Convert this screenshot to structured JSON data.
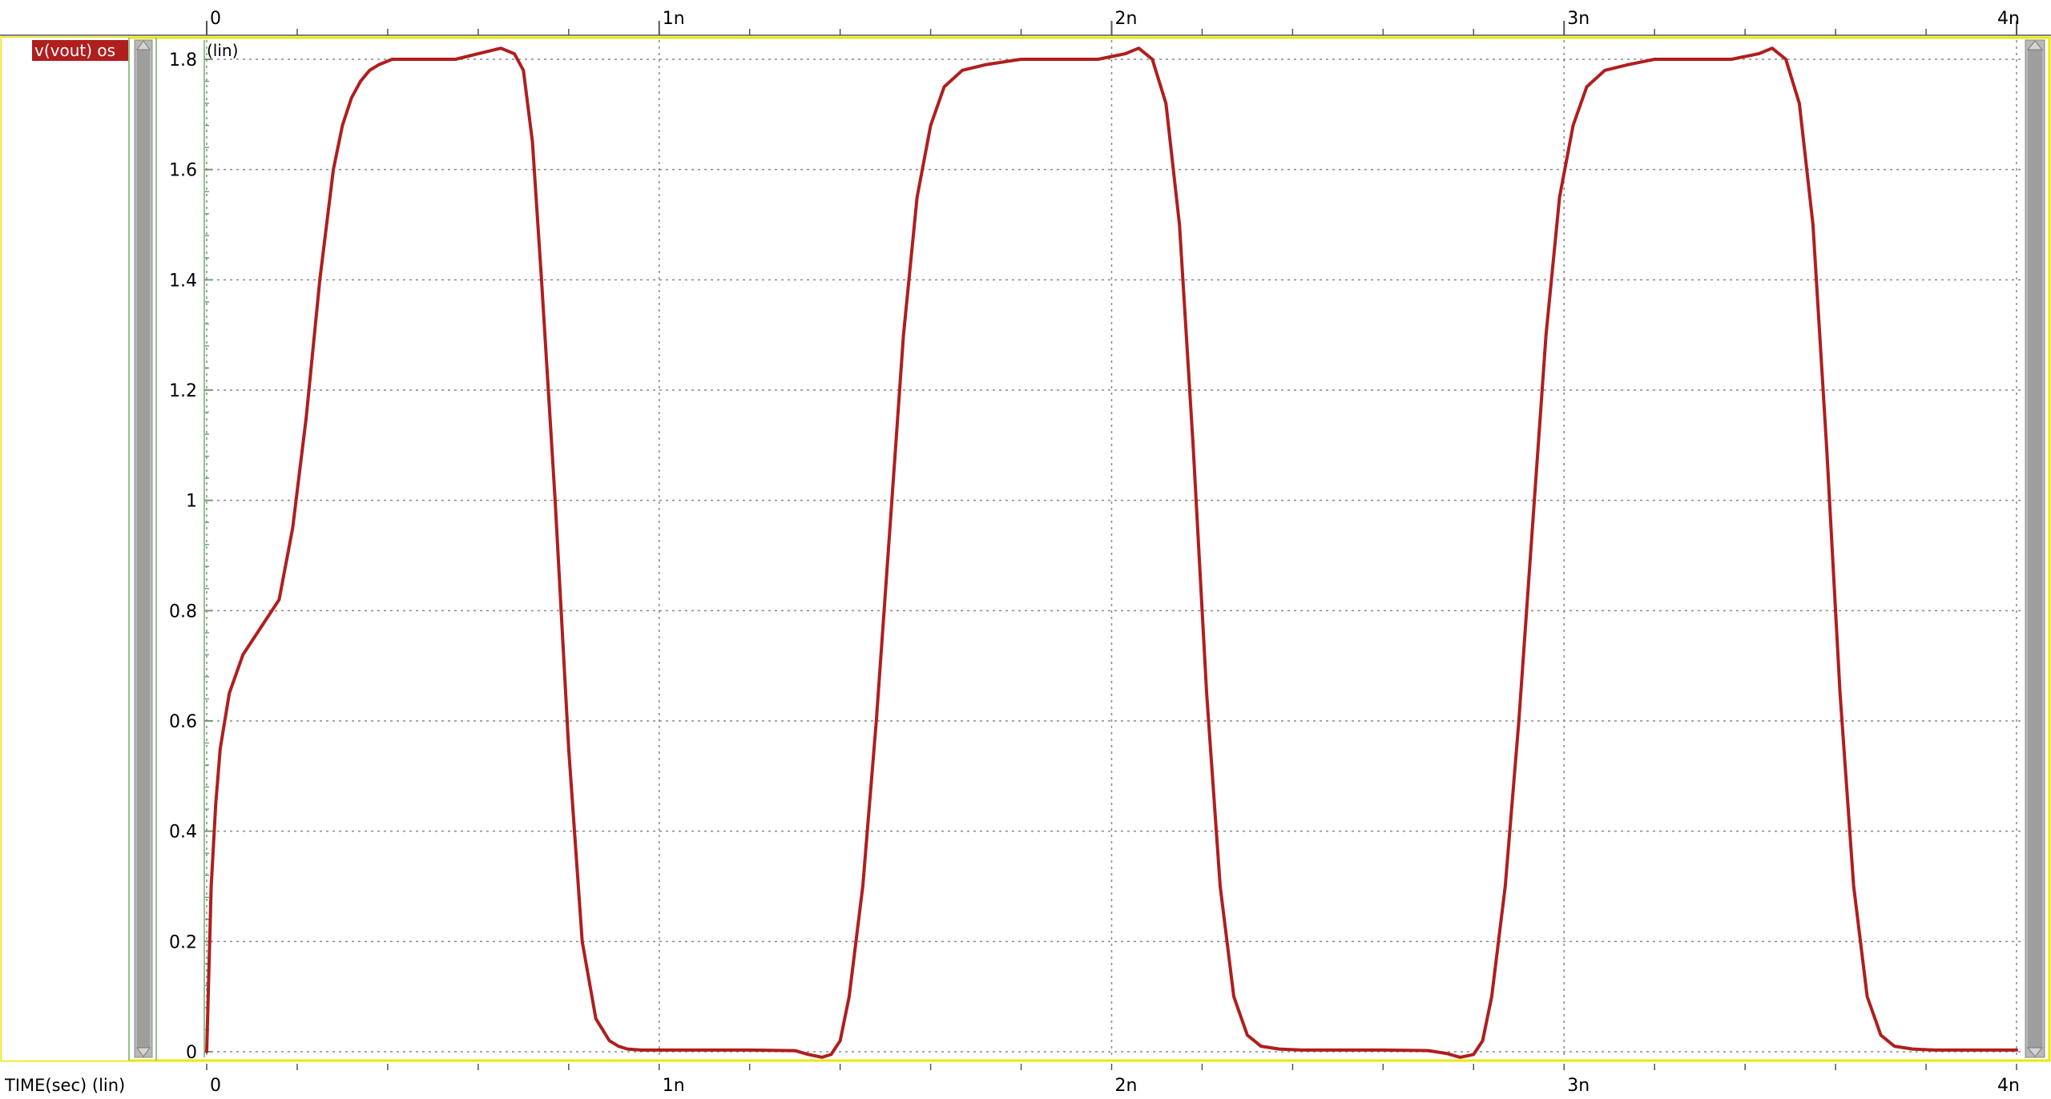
{
  "signal": {
    "label": "v(vout) os",
    "color": "#b01e1e"
  },
  "y_axis": {
    "scale_label": "(lin)",
    "ticks": [
      "0",
      "0.2",
      "0.4",
      "0.6",
      "0.8",
      "1",
      "1.2",
      "1.4",
      "1.6",
      "1.8"
    ]
  },
  "x_axis": {
    "label": "TIME(sec) (lin)",
    "ticks": [
      "0",
      "1n",
      "2n",
      "3n",
      "4n"
    ]
  },
  "colors": {
    "frame": "#e8e800",
    "grid": "#888888",
    "trace": "#b01e1e",
    "scrollbar": "#a8a8a8",
    "panel_border": "#8fc48f"
  },
  "chart_data": {
    "type": "line",
    "xlabel": "TIME(sec) (lin)",
    "ylabel": "",
    "xlim": [
      0,
      4e-09
    ],
    "ylim": [
      0,
      1.8
    ],
    "grid": true,
    "legend": "top-left",
    "series": [
      {
        "name": "v(vout) os",
        "color": "#b01e1e",
        "x": [
          0,
          5e-12,
          1e-11,
          2e-11,
          3e-11,
          5e-11,
          8e-11,
          1.2e-10,
          1.6e-10,
          1.9e-10,
          2.2e-10,
          2.5e-10,
          2.8e-10,
          3e-10,
          3.2e-10,
          3.4e-10,
          3.6e-10,
          3.8e-10,
          4.1e-10,
          4.5e-10,
          5e-10,
          5.5e-10,
          6e-10,
          6.5e-10,
          6.8e-10,
          7e-10,
          7.2e-10,
          7.4e-10,
          7.7e-10,
          8e-10,
          8.3e-10,
          8.6e-10,
          8.9e-10,
          9.1e-10,
          9.3e-10,
          9.6e-10,
          1e-09,
          1.1e-09,
          1.2e-09,
          1.3e-09,
          1.33e-09,
          1.36e-09,
          1.38e-09,
          1.4e-09,
          1.42e-09,
          1.45e-09,
          1.48e-09,
          1.51e-09,
          1.54e-09,
          1.57e-09,
          1.6e-09,
          1.63e-09,
          1.67e-09,
          1.72e-09,
          1.8e-09,
          1.9e-09,
          1.97e-09,
          2.03e-09,
          2.06e-09,
          2.09e-09,
          2.12e-09,
          2.15e-09,
          2.18e-09,
          2.21e-09,
          2.24e-09,
          2.27e-09,
          2.3e-09,
          2.33e-09,
          2.37e-09,
          2.42e-09,
          2.5e-09,
          2.6e-09,
          2.7e-09,
          2.74e-09,
          2.77e-09,
          2.8e-09,
          2.82e-09,
          2.84e-09,
          2.87e-09,
          2.9e-09,
          2.93e-09,
          2.96e-09,
          2.99e-09,
          3.02e-09,
          3.05e-09,
          3.09e-09,
          3.14e-09,
          3.2e-09,
          3.3e-09,
          3.37e-09,
          3.43e-09,
          3.46e-09,
          3.49e-09,
          3.52e-09,
          3.55e-09,
          3.58e-09,
          3.61e-09,
          3.64e-09,
          3.67e-09,
          3.7e-09,
          3.73e-09,
          3.77e-09,
          3.82e-09,
          3.9e-09,
          4e-09
        ],
        "y": [
          0,
          0.15,
          0.3,
          0.45,
          0.55,
          0.65,
          0.72,
          0.77,
          0.82,
          0.95,
          1.15,
          1.4,
          1.6,
          1.68,
          1.73,
          1.76,
          1.78,
          1.79,
          1.8,
          1.8,
          1.8,
          1.8,
          1.81,
          1.82,
          1.81,
          1.78,
          1.65,
          1.4,
          1.0,
          0.55,
          0.2,
          0.06,
          0.02,
          0.01,
          0.005,
          0.003,
          0.003,
          0.003,
          0.003,
          0.002,
          -0.005,
          -0.01,
          -0.005,
          0.02,
          0.1,
          0.3,
          0.6,
          0.95,
          1.3,
          1.55,
          1.68,
          1.75,
          1.78,
          1.79,
          1.8,
          1.8,
          1.8,
          1.81,
          1.82,
          1.8,
          1.72,
          1.5,
          1.1,
          0.65,
          0.3,
          0.1,
          0.03,
          0.01,
          0.005,
          0.003,
          0.003,
          0.003,
          0.002,
          -0.003,
          -0.01,
          -0.005,
          0.02,
          0.1,
          0.3,
          0.6,
          0.95,
          1.3,
          1.55,
          1.68,
          1.75,
          1.78,
          1.79,
          1.8,
          1.8,
          1.8,
          1.81,
          1.82,
          1.8,
          1.72,
          1.5,
          1.1,
          0.65,
          0.3,
          0.1,
          0.03,
          0.01,
          0.005,
          0.003,
          0.003,
          0.003
        ]
      }
    ]
  }
}
